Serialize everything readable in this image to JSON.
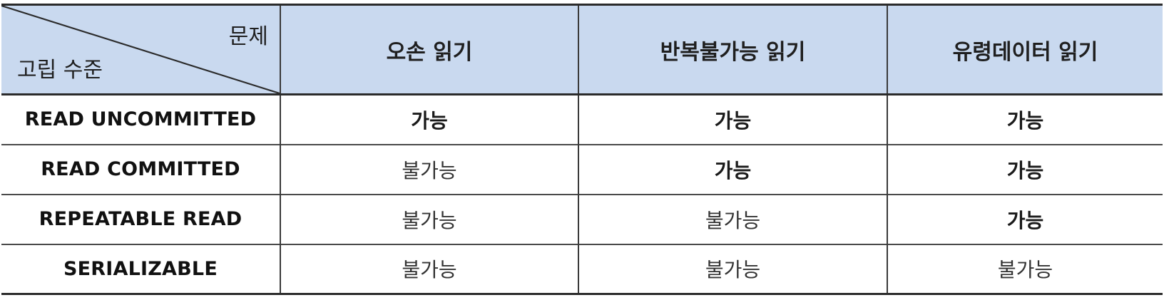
{
  "table": {
    "corner": {
      "top_label": "문제",
      "bottom_label": "고립 수준"
    },
    "columns": [
      "오손 읽기",
      "반복불가능 읽기",
      "유령데이터 읽기"
    ],
    "rows": [
      {
        "level": "READ UNCOMMITTED",
        "cells": [
          "가능",
          "가능",
          "가능"
        ]
      },
      {
        "level": "READ COMMITTED",
        "cells": [
          "불가능",
          "가능",
          "가능"
        ]
      },
      {
        "level": "REPEATABLE READ",
        "cells": [
          "불가능",
          "불가능",
          "가능"
        ]
      },
      {
        "level": "SERIALIZABLE",
        "cells": [
          "불가능",
          "불가능",
          "불가능"
        ]
      }
    ]
  },
  "colors": {
    "header_bg": "#c9d9ef",
    "border": "#2b2b2b"
  }
}
